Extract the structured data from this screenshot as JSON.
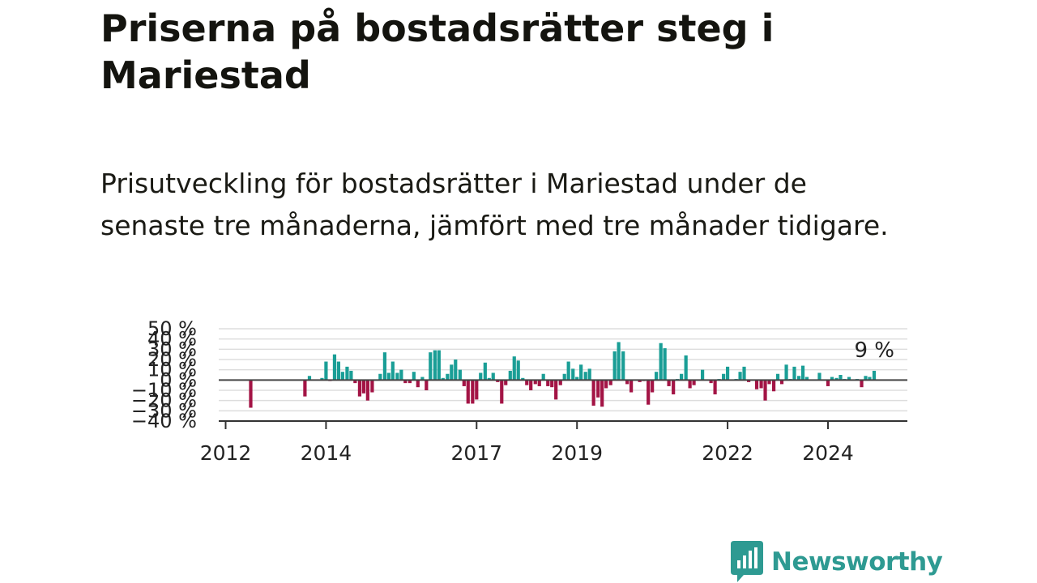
{
  "title": "Priserna på bostadsrätter steg i Mariestad",
  "subtitle": "Prisutveckling för bostadsrätter i Mariestad under de senaste tre månaderna, jämfört med tre månader tidigare.",
  "brand": "Newsworthy",
  "colors": {
    "positive": "#1a9e96",
    "negative": "#a31445",
    "grid": "#dddddd",
    "zero": "#444444",
    "brand": "#2e9a92"
  },
  "chart_data": {
    "type": "bar",
    "xlabel": "",
    "ylabel": "",
    "ylim": [
      -40,
      50
    ],
    "y_ticks": [
      -40,
      -30,
      -20,
      -10,
      0,
      10,
      20,
      30,
      40,
      50
    ],
    "y_tick_labels": [
      "−40 %",
      "−30 %",
      "−20 %",
      "−10 %",
      "0 %",
      "10 %",
      "20 %",
      "30 %",
      "40 %",
      "50 %"
    ],
    "x_ticks": [
      2012,
      2014,
      2017,
      2019,
      2022,
      2024
    ],
    "x_tick_labels": [
      "2012",
      "2014",
      "2017",
      "2019",
      "2022",
      "2024"
    ],
    "grid": true,
    "last_value_label": "9 %",
    "points": [
      {
        "x": 2012.5,
        "y": -27
      },
      {
        "x": 2013.58,
        "y": -16
      },
      {
        "x": 2013.67,
        "y": 4
      },
      {
        "x": 2013.92,
        "y": 2
      },
      {
        "x": 2014.0,
        "y": 18
      },
      {
        "x": 2014.08,
        "y": -1
      },
      {
        "x": 2014.17,
        "y": 25
      },
      {
        "x": 2014.25,
        "y": 18
      },
      {
        "x": 2014.33,
        "y": 8
      },
      {
        "x": 2014.42,
        "y": 13
      },
      {
        "x": 2014.5,
        "y": 9
      },
      {
        "x": 2014.58,
        "y": -3
      },
      {
        "x": 2014.67,
        "y": -16
      },
      {
        "x": 2014.75,
        "y": -13
      },
      {
        "x": 2014.83,
        "y": -20
      },
      {
        "x": 2014.92,
        "y": -12
      },
      {
        "x": 2015.08,
        "y": 6
      },
      {
        "x": 2015.17,
        "y": 27
      },
      {
        "x": 2015.25,
        "y": 7
      },
      {
        "x": 2015.33,
        "y": 18
      },
      {
        "x": 2015.42,
        "y": 7
      },
      {
        "x": 2015.5,
        "y": 10
      },
      {
        "x": 2015.58,
        "y": -3
      },
      {
        "x": 2015.67,
        "y": -3
      },
      {
        "x": 2015.75,
        "y": 8
      },
      {
        "x": 2015.83,
        "y": -7
      },
      {
        "x": 2015.92,
        "y": 3
      },
      {
        "x": 2016.0,
        "y": -10
      },
      {
        "x": 2016.08,
        "y": 27
      },
      {
        "x": 2016.17,
        "y": 29
      },
      {
        "x": 2016.25,
        "y": 29
      },
      {
        "x": 2016.33,
        "y": 2
      },
      {
        "x": 2016.42,
        "y": 6
      },
      {
        "x": 2016.5,
        "y": 15
      },
      {
        "x": 2016.58,
        "y": 20
      },
      {
        "x": 2016.67,
        "y": 10
      },
      {
        "x": 2016.75,
        "y": -6
      },
      {
        "x": 2016.83,
        "y": -23
      },
      {
        "x": 2016.92,
        "y": -23
      },
      {
        "x": 2017.0,
        "y": -19
      },
      {
        "x": 2017.08,
        "y": 7
      },
      {
        "x": 2017.17,
        "y": 17
      },
      {
        "x": 2017.25,
        "y": 2
      },
      {
        "x": 2017.33,
        "y": 7
      },
      {
        "x": 2017.42,
        "y": -2
      },
      {
        "x": 2017.5,
        "y": -23
      },
      {
        "x": 2017.58,
        "y": -5
      },
      {
        "x": 2017.67,
        "y": 9
      },
      {
        "x": 2017.75,
        "y": 23
      },
      {
        "x": 2017.83,
        "y": 19
      },
      {
        "x": 2017.92,
        "y": 2
      },
      {
        "x": 2018.0,
        "y": -5
      },
      {
        "x": 2018.08,
        "y": -10
      },
      {
        "x": 2018.17,
        "y": -4
      },
      {
        "x": 2018.25,
        "y": -6
      },
      {
        "x": 2018.33,
        "y": 6
      },
      {
        "x": 2018.42,
        "y": -6
      },
      {
        "x": 2018.5,
        "y": -7
      },
      {
        "x": 2018.58,
        "y": -19
      },
      {
        "x": 2018.67,
        "y": -5
      },
      {
        "x": 2018.75,
        "y": 6
      },
      {
        "x": 2018.83,
        "y": 18
      },
      {
        "x": 2018.92,
        "y": 11
      },
      {
        "x": 2019.0,
        "y": 3
      },
      {
        "x": 2019.08,
        "y": 15
      },
      {
        "x": 2019.17,
        "y": 8
      },
      {
        "x": 2019.25,
        "y": 11
      },
      {
        "x": 2019.33,
        "y": -25
      },
      {
        "x": 2019.42,
        "y": -17
      },
      {
        "x": 2019.5,
        "y": -26
      },
      {
        "x": 2019.58,
        "y": -8
      },
      {
        "x": 2019.67,
        "y": -5
      },
      {
        "x": 2019.75,
        "y": 28
      },
      {
        "x": 2019.83,
        "y": 37
      },
      {
        "x": 2019.92,
        "y": 28
      },
      {
        "x": 2020.0,
        "y": -4
      },
      {
        "x": 2020.08,
        "y": -12
      },
      {
        "x": 2020.25,
        "y": -2
      },
      {
        "x": 2020.33,
        "y": -1
      },
      {
        "x": 2020.42,
        "y": -24
      },
      {
        "x": 2020.5,
        "y": -12
      },
      {
        "x": 2020.58,
        "y": 8
      },
      {
        "x": 2020.67,
        "y": 36
      },
      {
        "x": 2020.75,
        "y": 31
      },
      {
        "x": 2020.83,
        "y": -6
      },
      {
        "x": 2020.92,
        "y": -14
      },
      {
        "x": 2021.0,
        "y": 1
      },
      {
        "x": 2021.08,
        "y": 6
      },
      {
        "x": 2021.17,
        "y": 24
      },
      {
        "x": 2021.25,
        "y": -8
      },
      {
        "x": 2021.33,
        "y": -5
      },
      {
        "x": 2021.5,
        "y": 10
      },
      {
        "x": 2021.67,
        "y": -3
      },
      {
        "x": 2021.75,
        "y": -14
      },
      {
        "x": 2021.83,
        "y": 1
      },
      {
        "x": 2021.92,
        "y": 6
      },
      {
        "x": 2022.0,
        "y": 13
      },
      {
        "x": 2022.17,
        "y": 1
      },
      {
        "x": 2022.25,
        "y": 8
      },
      {
        "x": 2022.33,
        "y": 13
      },
      {
        "x": 2022.42,
        "y": -2
      },
      {
        "x": 2022.58,
        "y": -9
      },
      {
        "x": 2022.67,
        "y": -8
      },
      {
        "x": 2022.75,
        "y": -20
      },
      {
        "x": 2022.83,
        "y": -4
      },
      {
        "x": 2022.92,
        "y": -11
      },
      {
        "x": 2023.0,
        "y": 6
      },
      {
        "x": 2023.08,
        "y": -4
      },
      {
        "x": 2023.17,
        "y": 15
      },
      {
        "x": 2023.25,
        "y": 1
      },
      {
        "x": 2023.33,
        "y": 13
      },
      {
        "x": 2023.42,
        "y": 4
      },
      {
        "x": 2023.5,
        "y": 14
      },
      {
        "x": 2023.58,
        "y": 3
      },
      {
        "x": 2023.83,
        "y": 7
      },
      {
        "x": 2024.0,
        "y": -6
      },
      {
        "x": 2024.08,
        "y": 3
      },
      {
        "x": 2024.17,
        "y": 2
      },
      {
        "x": 2024.25,
        "y": 5
      },
      {
        "x": 2024.33,
        "y": 1
      },
      {
        "x": 2024.42,
        "y": 3
      },
      {
        "x": 2024.58,
        "y": 1
      },
      {
        "x": 2024.67,
        "y": -7
      },
      {
        "x": 2024.75,
        "y": 4
      },
      {
        "x": 2024.83,
        "y": 3
      },
      {
        "x": 2024.92,
        "y": 9
      }
    ]
  }
}
